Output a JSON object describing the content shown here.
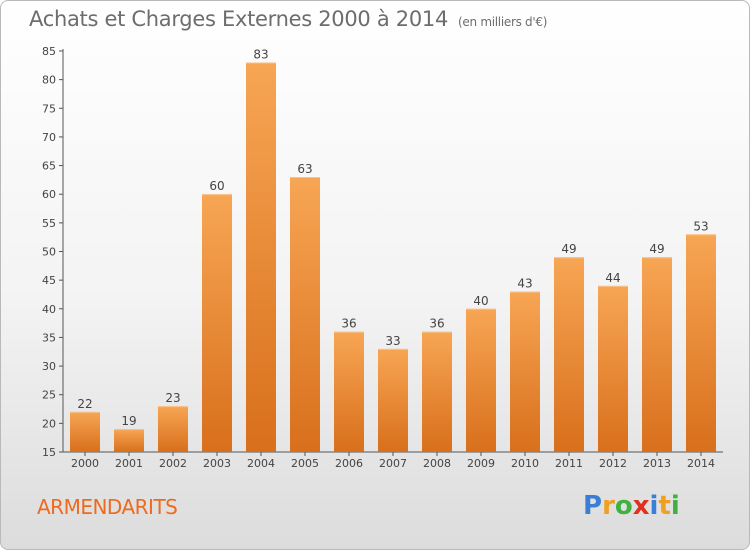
{
  "title": "Achats et Charges Externes 2000 à 2014",
  "subtitle": "(en milliers d'€)",
  "commune": "ARMENDARITS",
  "logo": {
    "letters": [
      "P",
      "r",
      "o",
      "x",
      "i",
      "t",
      "i"
    ],
    "colors": [
      "#3a7fd5",
      "#f0a020",
      "#3fb13f",
      "#e03020",
      "#3a7fd5",
      "#f0a020",
      "#3fb13f"
    ]
  },
  "colors": {
    "bar_top": "#f7a654",
    "bar_bottom": "#d86f1c",
    "title": "#6d6d6d",
    "commune": "#ee6a1f"
  },
  "chart_data": {
    "type": "bar",
    "title": "Achats et Charges Externes 2000 à 2014",
    "subtitle": "(en milliers d'€)",
    "categories": [
      "2000",
      "2001",
      "2002",
      "2003",
      "2004",
      "2005",
      "2006",
      "2007",
      "2008",
      "2009",
      "2010",
      "2011",
      "2012",
      "2013",
      "2014"
    ],
    "values": [
      22,
      19,
      23,
      60,
      83,
      63,
      36,
      33,
      36,
      40,
      43,
      49,
      44,
      49,
      53
    ],
    "ylim": [
      15,
      85
    ],
    "yticks": [
      15,
      20,
      25,
      30,
      35,
      40,
      45,
      50,
      55,
      60,
      65,
      70,
      75,
      80,
      85
    ],
    "grid": false,
    "xlabel": "",
    "ylabel": ""
  }
}
